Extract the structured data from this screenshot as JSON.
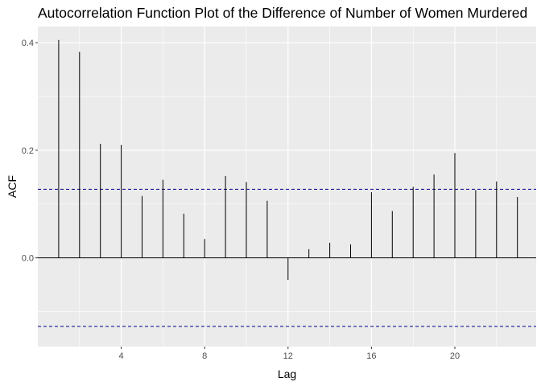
{
  "chart_data": {
    "type": "bar",
    "title": "Autocorrelation Function Plot of the Difference of Number of Women Murdered",
    "xlabel": "Lag",
    "ylabel": "ACF",
    "x": [
      1,
      2,
      3,
      4,
      5,
      6,
      7,
      8,
      9,
      10,
      11,
      12,
      13,
      14,
      15,
      16,
      17,
      18,
      19,
      20,
      21,
      22,
      23
    ],
    "values": [
      0.405,
      0.383,
      0.212,
      0.21,
      0.115,
      0.145,
      0.082,
      0.035,
      0.152,
      0.141,
      0.106,
      -0.041,
      0.016,
      0.028,
      0.025,
      0.122,
      0.087,
      0.132,
      0.155,
      0.195,
      0.126,
      0.142,
      0.113
    ],
    "conf_limit": 0.1275,
    "xlim": [
      0,
      23.9
    ],
    "ylim": [
      -0.165,
      0.43
    ],
    "xticks": [
      4,
      8,
      12,
      16,
      20
    ],
    "yticks": [
      -0.0,
      0.2,
      0.4
    ],
    "ytick_labels": [
      "0.0",
      "0.2",
      "0.4"
    ],
    "grid": true,
    "colors": {
      "panel": "#ebebeb",
      "grid": "#ffffff",
      "bars": "#000000",
      "conf_line": "#00008b"
    }
  }
}
